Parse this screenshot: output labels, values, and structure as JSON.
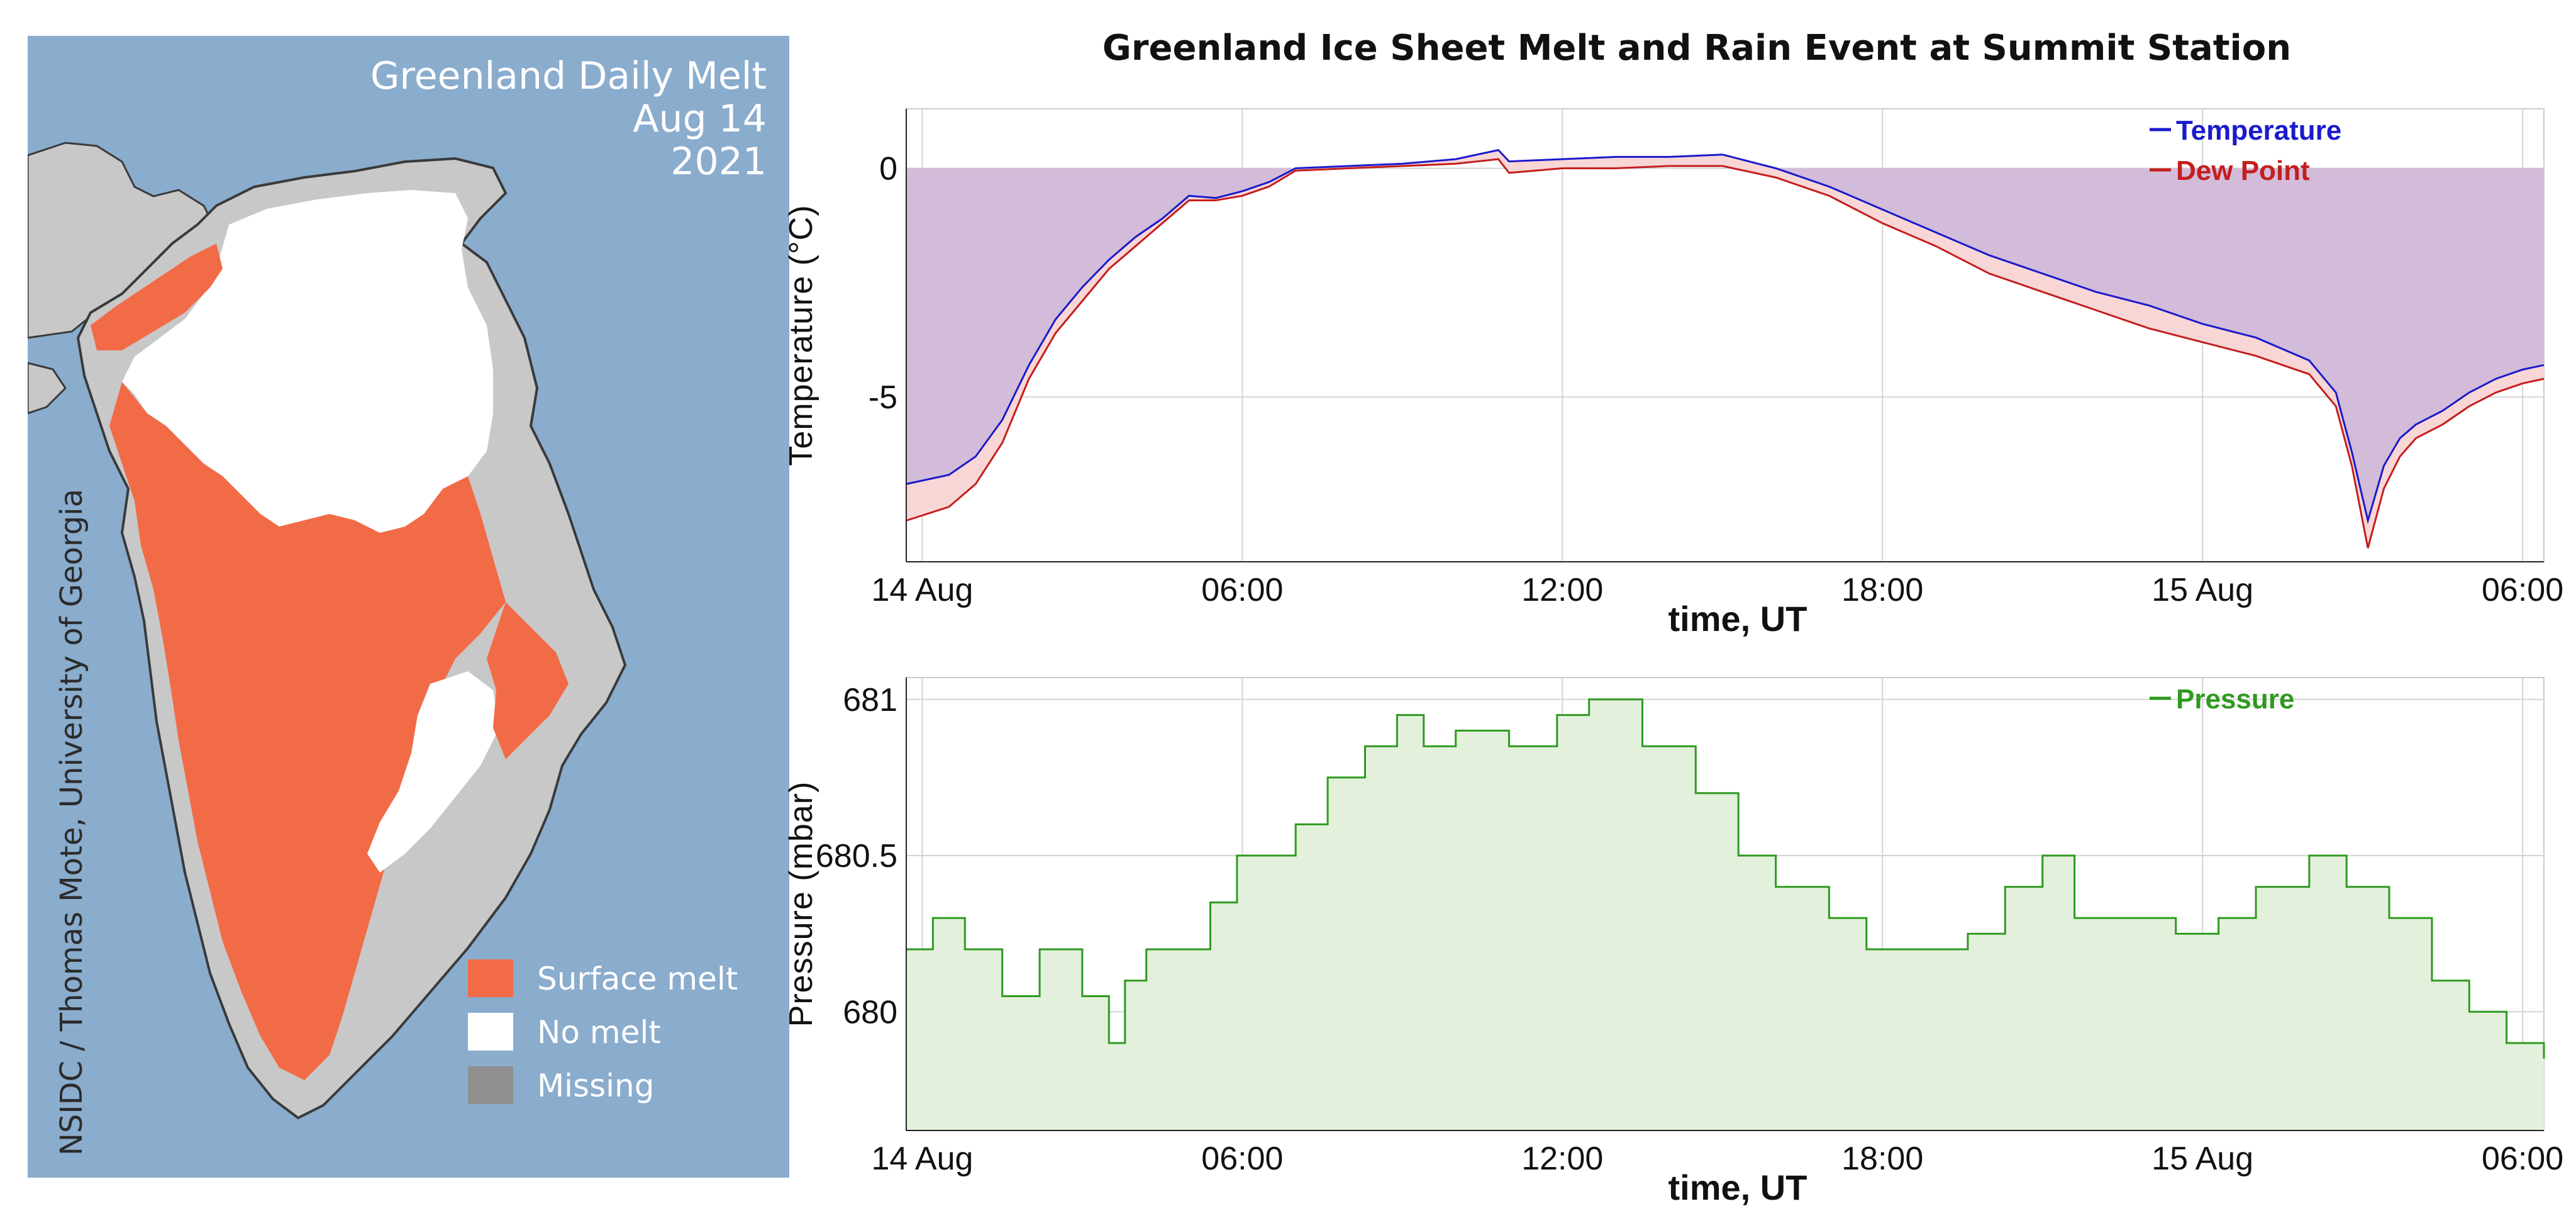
{
  "map": {
    "title_line1": "Greenland Daily Melt",
    "title_line2": "Aug 14",
    "title_line3": "2021",
    "credit": "NSIDC / Thomas Mote, University of Georgia",
    "legend": [
      {
        "label": "Surface melt",
        "color": "#f26b47"
      },
      {
        "label": "No melt",
        "color": "#ffffff"
      },
      {
        "label": "Missing",
        "color": "#8f8f8f"
      }
    ],
    "colors": {
      "ocean": "#8aaccd",
      "land": "#c8c8c8",
      "coast": "#3a3a3a"
    }
  },
  "chart_title": "Greenland Ice Sheet Melt and Rain Event at Summit Station",
  "chart_data": [
    {
      "type": "line",
      "title": "",
      "xlabel": "time, UT",
      "ylabel": "Temperature (°C)",
      "x_ticks": [
        "14 Aug",
        "06:00",
        "12:00",
        "18:00",
        "15 Aug",
        "06:00"
      ],
      "x_tick_hours": [
        0,
        6,
        12,
        18,
        24,
        30
      ],
      "xlim": [
        -0.3,
        30.4
      ],
      "ylim": [
        -8.6,
        1.3
      ],
      "y_ticks": [
        0,
        -5
      ],
      "y_tick_labels": [
        "0",
        "-5"
      ],
      "fill_between_zero_color": "#d2bcd9",
      "fill_dewpoint_gap_color": "#f8d6d6",
      "series": [
        {
          "name": "Temperature",
          "color": "#1a1acc",
          "x": [
            -0.3,
            0.5,
            1,
            1.5,
            2,
            2.5,
            3,
            3.5,
            4,
            4.5,
            5,
            5.5,
            6,
            6.5,
            7,
            8,
            9,
            10,
            10.8,
            11,
            12,
            13,
            14,
            15,
            16,
            17,
            18,
            19,
            20,
            21,
            22,
            23,
            24,
            25,
            26,
            26.5,
            26.8,
            27.1,
            27.4,
            27.7,
            28,
            28.5,
            29,
            29.5,
            30,
            30.4
          ],
          "values": [
            -6.9,
            -6.7,
            -6.3,
            -5.5,
            -4.3,
            -3.3,
            -2.6,
            -2,
            -1.5,
            -1.1,
            -0.6,
            -0.65,
            -0.5,
            -0.3,
            0,
            0.05,
            0.1,
            0.2,
            0.4,
            0.15,
            0.2,
            0.25,
            0.25,
            0.3,
            0,
            -0.4,
            -0.9,
            -1.4,
            -1.9,
            -2.3,
            -2.7,
            -3,
            -3.4,
            -3.7,
            -4.2,
            -4.9,
            -6.2,
            -7.7,
            -6.5,
            -5.9,
            -5.6,
            -5.3,
            -4.9,
            -4.6,
            -4.4,
            -4.3
          ]
        },
        {
          "name": "Dew Point",
          "color": "#c41e1e",
          "x": [
            -0.3,
            0.5,
            1,
            1.5,
            2,
            2.5,
            3,
            3.5,
            4,
            4.5,
            5,
            5.5,
            6,
            6.5,
            7,
            8,
            9,
            10,
            10.8,
            11,
            12,
            13,
            14,
            15,
            16,
            17,
            18,
            19,
            20,
            21,
            22,
            23,
            24,
            25,
            26,
            26.5,
            26.8,
            27.1,
            27.4,
            27.7,
            28,
            28.5,
            29,
            29.5,
            30,
            30.4
          ],
          "values": [
            -7.7,
            -7.4,
            -6.9,
            -6,
            -4.6,
            -3.6,
            -2.9,
            -2.2,
            -1.7,
            -1.2,
            -0.7,
            -0.7,
            -0.6,
            -0.4,
            -0.05,
            0,
            0.05,
            0.1,
            0.2,
            -0.1,
            0,
            0,
            0.05,
            0.05,
            -0.2,
            -0.6,
            -1.2,
            -1.7,
            -2.3,
            -2.7,
            -3.1,
            -3.5,
            -3.8,
            -4.1,
            -4.5,
            -5.2,
            -6.5,
            -8.3,
            -7,
            -6.3,
            -5.9,
            -5.6,
            -5.2,
            -4.9,
            -4.7,
            -4.6
          ]
        }
      ]
    },
    {
      "type": "area",
      "title": "",
      "xlabel": "time, UT",
      "ylabel": "Pressure (mbar)",
      "x_ticks": [
        "14 Aug",
        "06:00",
        "12:00",
        "18:00",
        "15 Aug",
        "06:00"
      ],
      "x_tick_hours": [
        0,
        6,
        12,
        18,
        24,
        30
      ],
      "xlim": [
        -0.3,
        30.4
      ],
      "ylim": [
        679.62,
        681.07
      ],
      "y_ticks": [
        681,
        680.5,
        680
      ],
      "y_tick_labels": [
        "681",
        "680.5",
        "680"
      ],
      "fill_color": "#e3f0dc",
      "series": [
        {
          "name": "Pressure",
          "color": "#2e9a1e",
          "x": [
            -0.3,
            0.2,
            0.8,
            1.5,
            2.2,
            3,
            3.5,
            3.8,
            4.2,
            4.8,
            5.4,
            5.9,
            6.5,
            7,
            7.6,
            8.3,
            8.9,
            9.4,
            10,
            11,
            11.9,
            12.5,
            13.5,
            14.5,
            15.3,
            16,
            17,
            17.7,
            18.6,
            19.6,
            20.3,
            21,
            21.6,
            22.5,
            23.5,
            24.3,
            25,
            26,
            26.7,
            27.5,
            28.3,
            29,
            29.7,
            30.4
          ],
          "values": [
            680.2,
            680.3,
            680.2,
            680.05,
            680.2,
            680.05,
            679.9,
            680.1,
            680.2,
            680.2,
            680.35,
            680.5,
            680.5,
            680.6,
            680.75,
            680.85,
            680.95,
            680.85,
            680.9,
            680.85,
            680.95,
            681,
            680.85,
            680.7,
            680.5,
            680.4,
            680.3,
            680.2,
            680.2,
            680.25,
            680.4,
            680.5,
            680.3,
            680.3,
            680.25,
            680.3,
            680.4,
            680.5,
            680.4,
            680.3,
            680.1,
            680.0,
            679.9,
            679.85
          ]
        }
      ]
    }
  ]
}
